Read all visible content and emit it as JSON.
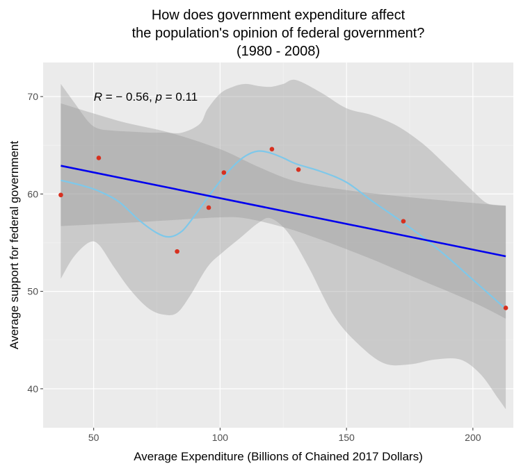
{
  "chart_data": {
    "type": "scatter",
    "title_lines": [
      "How does government expenditure affect",
      "the population's opinion of federal government?",
      "(1980 - 2008)"
    ],
    "xlabel": "Average Expenditure (Billions of Chained 2017 Dollars)",
    "ylabel": "Average support for federal government",
    "xlim": [
      30,
      216
    ],
    "ylim": [
      36,
      73.5
    ],
    "xticks": [
      50,
      100,
      150,
      200
    ],
    "yticks": [
      40,
      50,
      60,
      70
    ],
    "grid": true,
    "annotation": {
      "r_symbol": "R",
      "r_value": " = − 0.56, ",
      "p_symbol": "p",
      "p_value": " = 0.11",
      "x": 50,
      "y": 70.0
    },
    "points": {
      "color": "#d7301f",
      "x": [
        37,
        52,
        83,
        95.5,
        101.5,
        120.5,
        131,
        172.5,
        213
      ],
      "y": [
        59.9,
        63.7,
        54.1,
        58.6,
        62.2,
        64.6,
        62.5,
        57.2,
        48.3
      ]
    },
    "linear_fit": {
      "color": "#0000ee",
      "x": [
        37,
        213
      ],
      "y": [
        62.9,
        53.6
      ],
      "ci_lower": [
        [
          37,
          56.7
        ],
        [
          60,
          57.0
        ],
        [
          80,
          57.3
        ],
        [
          100,
          57.6
        ],
        [
          110,
          57.5
        ],
        [
          125,
          56.6
        ],
        [
          140,
          55.3
        ],
        [
          160,
          53.3
        ],
        [
          180,
          51.1
        ],
        [
          200,
          48.9
        ],
        [
          213,
          47.2
        ]
      ],
      "ci_upper": [
        [
          37,
          69.3
        ],
        [
          60,
          67.5
        ],
        [
          80,
          66.3
        ],
        [
          100,
          64.6
        ],
        [
          115,
          62.8
        ],
        [
          130,
          61.3
        ],
        [
          150,
          60.4
        ],
        [
          170,
          59.8
        ],
        [
          190,
          59.3
        ],
        [
          213,
          58.8
        ]
      ]
    },
    "loess_fit": {
      "color": "#7ec8ea",
      "x": [
        37,
        45,
        52,
        60,
        68,
        75,
        80,
        85,
        90,
        95,
        100,
        105,
        110,
        115,
        120,
        125,
        130,
        140,
        150,
        160,
        170,
        180,
        190,
        200,
        213
      ],
      "y": [
        61.4,
        60.9,
        60.3,
        59.2,
        57.3,
        56.0,
        55.6,
        56.2,
        57.8,
        59.6,
        61.3,
        62.8,
        63.9,
        64.4,
        64.2,
        63.7,
        63.1,
        62.3,
        61.2,
        59.3,
        57.5,
        55.6,
        53.5,
        51.2,
        48.2
      ],
      "ci_lower": [
        [
          37,
          51.3
        ],
        [
          42,
          53.5
        ],
        [
          48,
          55.0
        ],
        [
          52,
          54.8
        ],
        [
          58,
          52.5
        ],
        [
          65,
          50.0
        ],
        [
          72,
          48.2
        ],
        [
          78,
          47.6
        ],
        [
          83,
          47.8
        ],
        [
          88,
          49.5
        ],
        [
          95,
          52.5
        ],
        [
          101,
          54.0
        ],
        [
          108,
          55.5
        ],
        [
          115,
          57.0
        ],
        [
          120,
          57.5
        ],
        [
          127,
          56.0
        ],
        [
          135,
          52.5
        ],
        [
          145,
          47.5
        ],
        [
          155,
          44.5
        ],
        [
          165,
          42.6
        ],
        [
          175,
          42.5
        ],
        [
          185,
          43.0
        ],
        [
          195,
          43.0
        ],
        [
          203,
          41.5
        ],
        [
          210,
          39.0
        ],
        [
          213,
          37.9
        ]
      ],
      "ci_upper": [
        [
          37,
          71.3
        ],
        [
          42,
          69.5
        ],
        [
          48,
          67.4
        ],
        [
          52,
          66.7
        ],
        [
          58,
          66.5
        ],
        [
          65,
          66.4
        ],
        [
          72,
          66.3
        ],
        [
          78,
          66.3
        ],
        [
          85,
          66.3
        ],
        [
          92,
          67.2
        ],
        [
          95,
          68.7
        ],
        [
          100,
          70.3
        ],
        [
          105,
          71.0
        ],
        [
          110,
          71.3
        ],
        [
          115,
          71.1
        ],
        [
          120,
          71.0
        ],
        [
          125,
          71.3
        ],
        [
          130,
          71.7
        ],
        [
          140,
          70.4
        ],
        [
          150,
          68.8
        ],
        [
          160,
          68.1
        ],
        [
          170,
          67.0
        ],
        [
          180,
          65.2
        ],
        [
          190,
          62.8
        ],
        [
          200,
          60.3
        ],
        [
          206,
          59.0
        ],
        [
          213,
          58.8
        ]
      ]
    }
  }
}
